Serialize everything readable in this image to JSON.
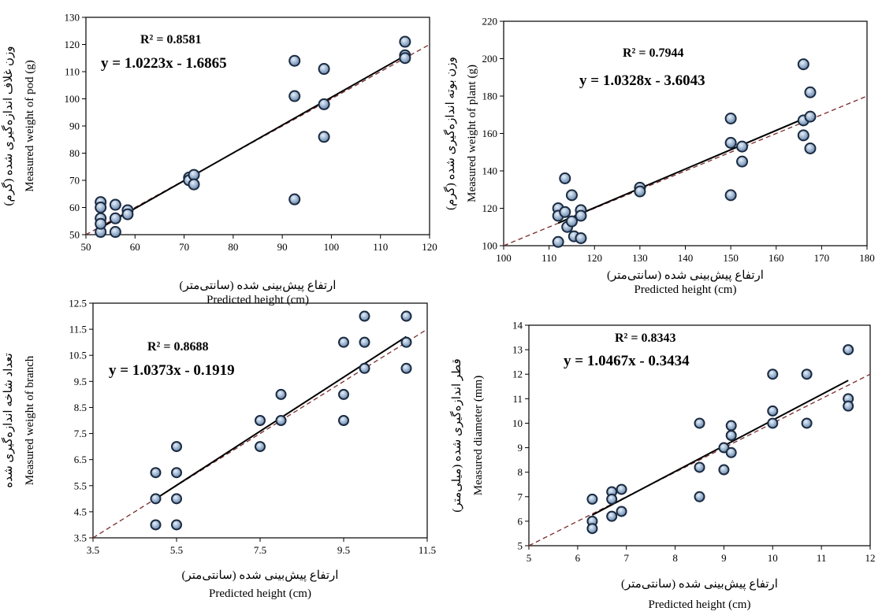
{
  "chart_data": [
    {
      "type": "scatter",
      "xlim": [
        50,
        120
      ],
      "ylim": [
        50,
        130
      ],
      "xticks": [
        "50",
        "60",
        "70",
        "80",
        "90",
        "100",
        "110",
        "120"
      ],
      "yticks": [
        "50",
        "60",
        "70",
        "80",
        "90",
        "100",
        "110",
        "120",
        "130"
      ],
      "xlabel_fa": "ارتفاع پیش‌بینی شده (سانتی‌متر)",
      "xlabel_en": "Predicted height (cm)",
      "ylabel_fa": "وزن غلاف اندازه‌گیری شده (گرم)",
      "ylabel_en": "Measured weight of pod (g)",
      "r2": "R² = 0.8581",
      "equation": "y = 1.0223x - 1.6865",
      "fit": {
        "slope": 1.0223,
        "intercept": -1.6865,
        "x_range": [
          53,
          115
        ]
      },
      "grid": false,
      "points": [
        [
          53,
          62
        ],
        [
          53,
          60
        ],
        [
          53,
          56
        ],
        [
          53,
          51
        ],
        [
          53,
          54
        ],
        [
          56,
          61
        ],
        [
          56,
          56
        ],
        [
          56,
          51
        ],
        [
          58.5,
          59
        ],
        [
          58.5,
          57.5
        ],
        [
          71,
          71
        ],
        [
          71,
          70
        ],
        [
          72,
          72
        ],
        [
          72,
          68.5
        ],
        [
          92.5,
          114
        ],
        [
          92.5,
          101
        ],
        [
          92.5,
          63
        ],
        [
          98.5,
          111
        ],
        [
          98.5,
          98
        ],
        [
          98.5,
          86
        ],
        [
          115,
          121
        ],
        [
          115,
          116
        ],
        [
          115,
          115
        ]
      ]
    },
    {
      "type": "scatter",
      "xlim": [
        100,
        180
      ],
      "ylim": [
        100,
        220
      ],
      "xticks": [
        "100",
        "110",
        "120",
        "130",
        "140",
        "150",
        "160",
        "170",
        "180"
      ],
      "yticks": [
        "100",
        "120",
        "140",
        "160",
        "180",
        "200",
        "220"
      ],
      "xlabel_fa": "ارتفاع پیش‌بینی شده (سانتی‌متر)",
      "xlabel_en": "Predicted height (cm)",
      "ylabel_fa": "وزن بوته اندازه‌گیری شده (گرم)",
      "ylabel_en": "Measured weight of plant (g)",
      "r2": "R² = 0.7944",
      "equation": "y = 1.0328x - 3.6043",
      "fit": {
        "slope": 1.0328,
        "intercept": -3.6043,
        "x_range": [
          112,
          167.5
        ]
      },
      "grid": false,
      "points": [
        [
          112,
          120
        ],
        [
          112,
          116
        ],
        [
          112,
          102
        ],
        [
          113.5,
          136
        ],
        [
          113.5,
          118
        ],
        [
          114,
          110
        ],
        [
          115,
          127
        ],
        [
          115,
          113
        ],
        [
          115.5,
          105
        ],
        [
          117,
          119
        ],
        [
          117,
          116
        ],
        [
          117,
          104
        ],
        [
          130,
          131
        ],
        [
          130,
          129
        ],
        [
          150,
          168
        ],
        [
          150,
          155
        ],
        [
          150,
          127
        ],
        [
          152.5,
          153
        ],
        [
          152.5,
          145
        ],
        [
          166,
          197
        ],
        [
          166,
          167
        ],
        [
          166,
          159
        ],
        [
          167.5,
          182
        ],
        [
          167.5,
          169
        ],
        [
          167.5,
          152
        ]
      ]
    },
    {
      "type": "scatter",
      "xlim": [
        3.5,
        11.5
      ],
      "ylim": [
        3.5,
        12.5
      ],
      "xticks": [
        "3.5",
        "5.5",
        "7.5",
        "9.5",
        "11.5"
      ],
      "yticks": [
        "3.5",
        "4.5",
        "5.5",
        "6.5",
        "7.5",
        "8.5",
        "9.5",
        "10.5",
        "11.5",
        "12.5"
      ],
      "xlabel_fa": "ارتفاع پیش‌بینی شده (سانتی‌متر)",
      "xlabel_en": "Predicted height (cm)",
      "ylabel_fa": "تعداد شاخه اندازه‌گیری شده",
      "ylabel_en": "Measured weight of branch",
      "r2": "R² = 0.8688",
      "equation": "y = 1.0373x - 0.1919",
      "fit": {
        "slope": 1.0373,
        "intercept": -0.1919,
        "x_range": [
          5,
          11
        ]
      },
      "grid": false,
      "points": [
        [
          5,
          6
        ],
        [
          5,
          5
        ],
        [
          5,
          4
        ],
        [
          5.5,
          7
        ],
        [
          5.5,
          6
        ],
        [
          5.5,
          5
        ],
        [
          5.5,
          4
        ],
        [
          7.5,
          8
        ],
        [
          7.5,
          7
        ],
        [
          8,
          9
        ],
        [
          8,
          8
        ],
        [
          9.5,
          11
        ],
        [
          9.5,
          9
        ],
        [
          9.5,
          8
        ],
        [
          10,
          12
        ],
        [
          10,
          11
        ],
        [
          10,
          10
        ],
        [
          11,
          12
        ],
        [
          11,
          11
        ],
        [
          11,
          10
        ]
      ]
    },
    {
      "type": "scatter",
      "xlim": [
        5,
        12
      ],
      "ylim": [
        5,
        14
      ],
      "xticks": [
        "5",
        "6",
        "7",
        "8",
        "9",
        "10",
        "11",
        "12"
      ],
      "yticks": [
        "5",
        "6",
        "7",
        "8",
        "9",
        "10",
        "11",
        "12",
        "13",
        "14"
      ],
      "xlabel_fa": "ارتفاع پیش‌بینی شده (سانتی‌متر)",
      "xlabel_en": "Predicted height (cm)",
      "ylabel_fa": "قطر اندازه‌گیری شده (میلی‌متر)",
      "ylabel_en": "Measured diameter (mm)",
      "r2": "R² = 0.8343",
      "equation": "y = 1.0467x - 0.3434",
      "fit": {
        "slope": 1.0467,
        "intercept": -0.3434,
        "x_range": [
          6.3,
          11.55
        ]
      },
      "grid": false,
      "points": [
        [
          6.3,
          6.9
        ],
        [
          6.3,
          6
        ],
        [
          6.3,
          5.7
        ],
        [
          6.7,
          7.2
        ],
        [
          6.7,
          6.9
        ],
        [
          6.7,
          6.2
        ],
        [
          6.9,
          7.3
        ],
        [
          6.9,
          6.4
        ],
        [
          8.5,
          10
        ],
        [
          8.5,
          8.2
        ],
        [
          8.5,
          7
        ],
        [
          9,
          9
        ],
        [
          9,
          8.1
        ],
        [
          9.15,
          9.9
        ],
        [
          9.15,
          9.5
        ],
        [
          9.15,
          8.8
        ],
        [
          10,
          12
        ],
        [
          10,
          10.5
        ],
        [
          10,
          10
        ],
        [
          10.7,
          12
        ],
        [
          10.7,
          10
        ],
        [
          11.55,
          13
        ],
        [
          11.55,
          11
        ],
        [
          11.55,
          10.7
        ]
      ]
    }
  ]
}
